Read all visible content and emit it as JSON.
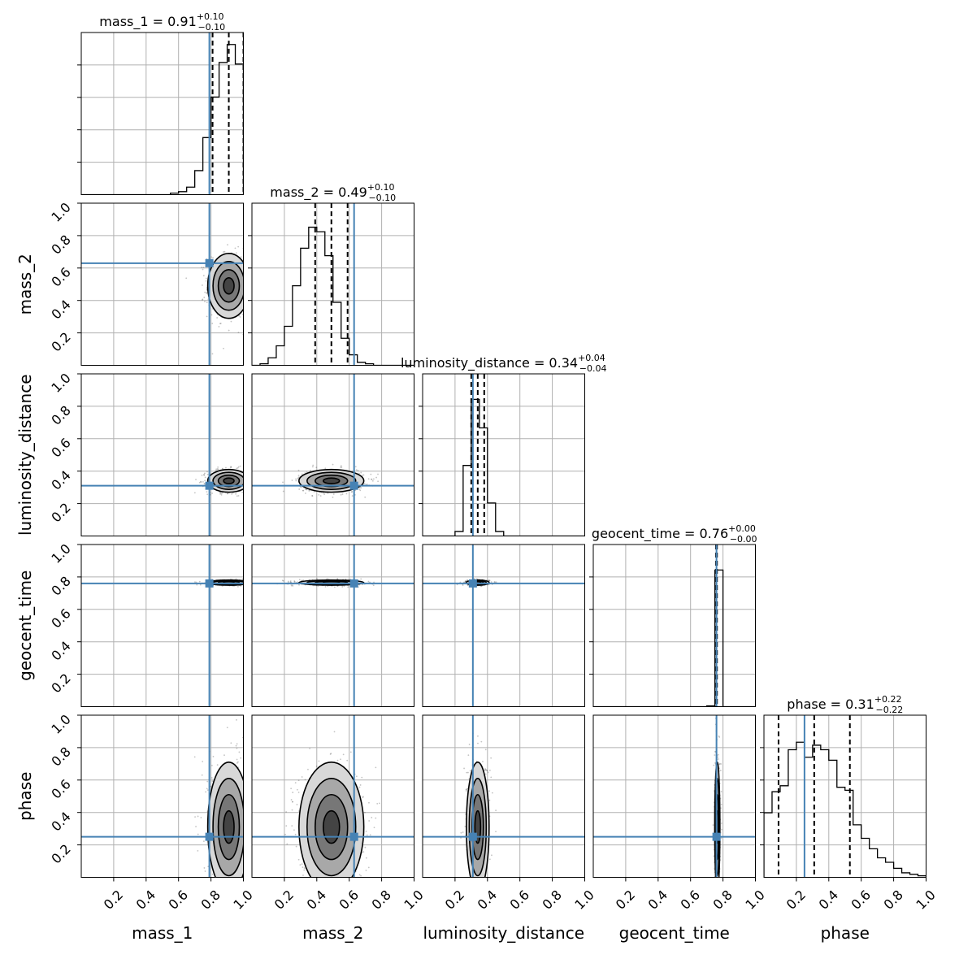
{
  "chart_data": {
    "type": "corner",
    "parameters": [
      "mass_1",
      "mass_2",
      "luminosity_distance",
      "geocent_time",
      "phase"
    ],
    "axis_labels": [
      "mass_1",
      "mass_2",
      "luminosity_distance",
      "geocent_time",
      "phase"
    ],
    "axis_range": [
      0,
      1
    ],
    "tick_values": [
      0.2,
      0.4,
      0.6,
      0.8,
      1.0
    ],
    "tick_labels": [
      "0.2",
      "0.4",
      "0.6",
      "0.8",
      "1.0"
    ],
    "grid": true,
    "truth_color": "#4682b4",
    "truths": [
      0.79,
      0.63,
      0.31,
      0.76,
      0.25
    ],
    "titles": [
      {
        "name": "mass_1",
        "median": "0.91",
        "plus": "+0.10",
        "minus": "−0.10"
      },
      {
        "name": "mass_2",
        "median": "0.49",
        "plus": "+0.10",
        "minus": "−0.10"
      },
      {
        "name": "luminosity_distance",
        "median": "0.34",
        "plus": "+0.04",
        "minus": "−0.04"
      },
      {
        "name": "geocent_time",
        "median": "0.76",
        "plus": "+0.00",
        "minus": "−0.00"
      },
      {
        "name": "phase",
        "median": "0.31",
        "plus": "+0.22",
        "minus": "−0.22"
      }
    ],
    "posterior": [
      {
        "mean": 0.91,
        "sd": 0.065,
        "quantiles": [
          0.81,
          0.91,
          1.0
        ]
      },
      {
        "mean": 0.49,
        "sd": 0.1,
        "quantiles": [
          0.39,
          0.49,
          0.59
        ]
      },
      {
        "mean": 0.34,
        "sd": 0.035,
        "quantiles": [
          0.3,
          0.34,
          0.38
        ]
      },
      {
        "mean": 0.765,
        "sd": 0.008,
        "quantiles": [
          0.757,
          0.76,
          0.763
        ]
      },
      {
        "mean": 0.31,
        "sd": 0.2,
        "quantiles": [
          0.09,
          0.31,
          0.53
        ]
      }
    ],
    "histograms": [
      {
        "edges": [
          0.0,
          0.05,
          0.1,
          0.15,
          0.2,
          0.25,
          0.3,
          0.35,
          0.4,
          0.45,
          0.5,
          0.55,
          0.6,
          0.65,
          0.7,
          0.75,
          0.8,
          0.85,
          0.9,
          0.95,
          1.0
        ],
        "counts": [
          0,
          0,
          0,
          0,
          0,
          0,
          0,
          0,
          0,
          0,
          0,
          0.01,
          0.02,
          0.05,
          0.16,
          0.38,
          0.65,
          0.88,
          1.0,
          0.87
        ]
      },
      {
        "edges": [
          0.0,
          0.05,
          0.1,
          0.15,
          0.2,
          0.25,
          0.3,
          0.35,
          0.4,
          0.45,
          0.5,
          0.55,
          0.6,
          0.65,
          0.7,
          0.75,
          0.8,
          0.85,
          0.9,
          0.95,
          1.0
        ],
        "counts": [
          0,
          0.01,
          0.05,
          0.13,
          0.26,
          0.53,
          0.78,
          0.92,
          0.89,
          0.73,
          0.42,
          0.18,
          0.07,
          0.02,
          0.01,
          0,
          0,
          0,
          0,
          0
        ]
      },
      {
        "edges": [
          0.0,
          0.05,
          0.1,
          0.15,
          0.2,
          0.25,
          0.3,
          0.35,
          0.4,
          0.45,
          0.5,
          0.55,
          0.6,
          0.65,
          0.7,
          0.75,
          0.8,
          0.85,
          0.9,
          0.95,
          1.0
        ],
        "counts": [
          0,
          0,
          0,
          0,
          0.03,
          0.47,
          0.91,
          0.72,
          0.22,
          0.03,
          0,
          0,
          0,
          0,
          0,
          0,
          0,
          0,
          0,
          0
        ]
      },
      {
        "edges": [
          0.0,
          0.05,
          0.1,
          0.15,
          0.2,
          0.25,
          0.3,
          0.35,
          0.4,
          0.45,
          0.5,
          0.55,
          0.6,
          0.65,
          0.7,
          0.75,
          0.8,
          0.85,
          0.9,
          0.95,
          1.0
        ],
        "counts": [
          0,
          0,
          0,
          0,
          0,
          0,
          0,
          0,
          0,
          0,
          0,
          0,
          0,
          0,
          0.005,
          0.91,
          0,
          0,
          0,
          0
        ]
      },
      {
        "edges": [
          0.0,
          0.05,
          0.1,
          0.15,
          0.2,
          0.25,
          0.3,
          0.35,
          0.4,
          0.45,
          0.5,
          0.55,
          0.6,
          0.65,
          0.7,
          0.75,
          0.8,
          0.85,
          0.9,
          0.95,
          1.0
        ],
        "counts": [
          0.43,
          0.57,
          0.61,
          0.85,
          0.9,
          0.8,
          0.88,
          0.85,
          0.78,
          0.6,
          0.58,
          0.35,
          0.26,
          0.19,
          0.13,
          0.1,
          0.06,
          0.03,
          0.02,
          0.01
        ]
      }
    ]
  }
}
